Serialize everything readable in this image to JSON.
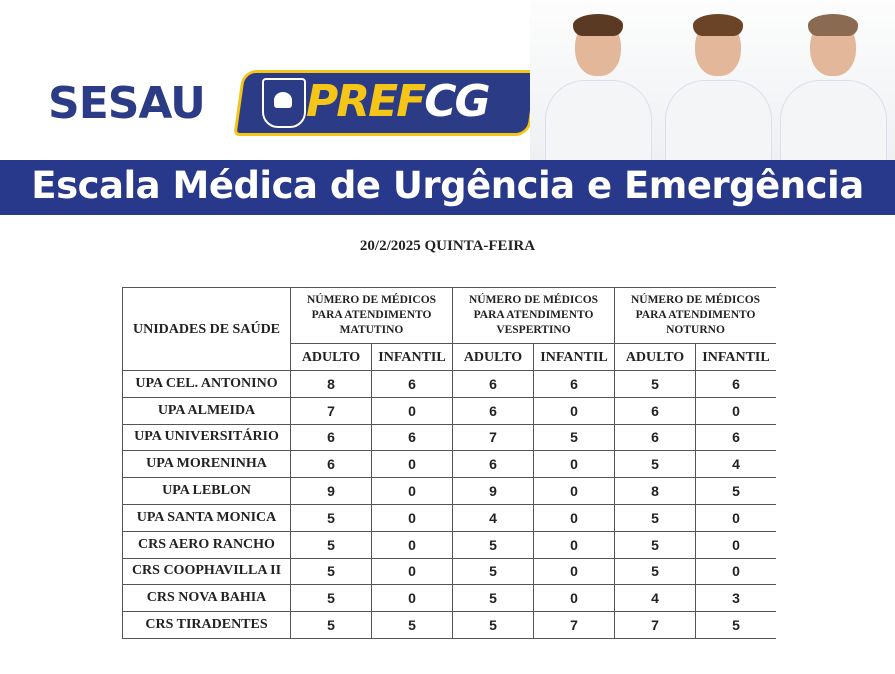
{
  "header": {
    "logo_sesau": "SESAU",
    "logo_pref_part1": "PREF",
    "logo_pref_part2": "CG",
    "title": "Escala Médica de Urgência e Emergência",
    "colors": {
      "brand_blue": "#28388a",
      "brand_yellow": "#f5c518"
    }
  },
  "date": "20/2/2025 QUINTA-FEIRA",
  "table": {
    "unit_header": "UNIDADES DE SAÚDE",
    "groups": [
      {
        "line1": "NÚMERO DE MÉDICOS",
        "line2": "PARA ATENDIMENTO",
        "line3": "MATUTINO"
      },
      {
        "line1": "NÚMERO DE MÉDICOS",
        "line2": "PARA ATENDIMENTO",
        "line3": "VESPERTINO"
      },
      {
        "line1": "NÚMERO DE MÉDICOS",
        "line2": "PARA ATENDIMENTO",
        "line3": "NOTURNO"
      }
    ],
    "sub_headers": [
      "ADULTO",
      "INFANTIL",
      "ADULTO",
      "INFANTIL",
      "ADULTO",
      "INFANTIL"
    ],
    "rows": [
      {
        "unit": "UPA CEL. ANTONINO",
        "values": [
          "8",
          "6",
          "6",
          "6",
          "5",
          "6"
        ]
      },
      {
        "unit": "UPA ALMEIDA",
        "values": [
          "7",
          "0",
          "6",
          "0",
          "6",
          "0"
        ]
      },
      {
        "unit": "UPA UNIVERSITÁRIO",
        "values": [
          "6",
          "6",
          "7",
          "5",
          "6",
          "6"
        ]
      },
      {
        "unit": "UPA MORENINHA",
        "values": [
          "6",
          "0",
          "6",
          "0",
          "5",
          "4"
        ]
      },
      {
        "unit": "UPA LEBLON",
        "values": [
          "9",
          "0",
          "9",
          "0",
          "8",
          "5"
        ]
      },
      {
        "unit": "UPA SANTA MONICA",
        "values": [
          "5",
          "0",
          "4",
          "0",
          "5",
          "0"
        ]
      },
      {
        "unit": "CRS AERO RANCHO",
        "values": [
          "5",
          "0",
          "5",
          "0",
          "5",
          "0"
        ]
      },
      {
        "unit": "CRS COOPHAVILLA II",
        "values": [
          "5",
          "0",
          "5",
          "0",
          "5",
          "0"
        ]
      },
      {
        "unit": "CRS NOVA BAHIA",
        "values": [
          "5",
          "0",
          "5",
          "0",
          "4",
          "3"
        ]
      },
      {
        "unit": "CRS TIRADENTES",
        "values": [
          "5",
          "5",
          "5",
          "7",
          "7",
          "5"
        ]
      }
    ]
  }
}
